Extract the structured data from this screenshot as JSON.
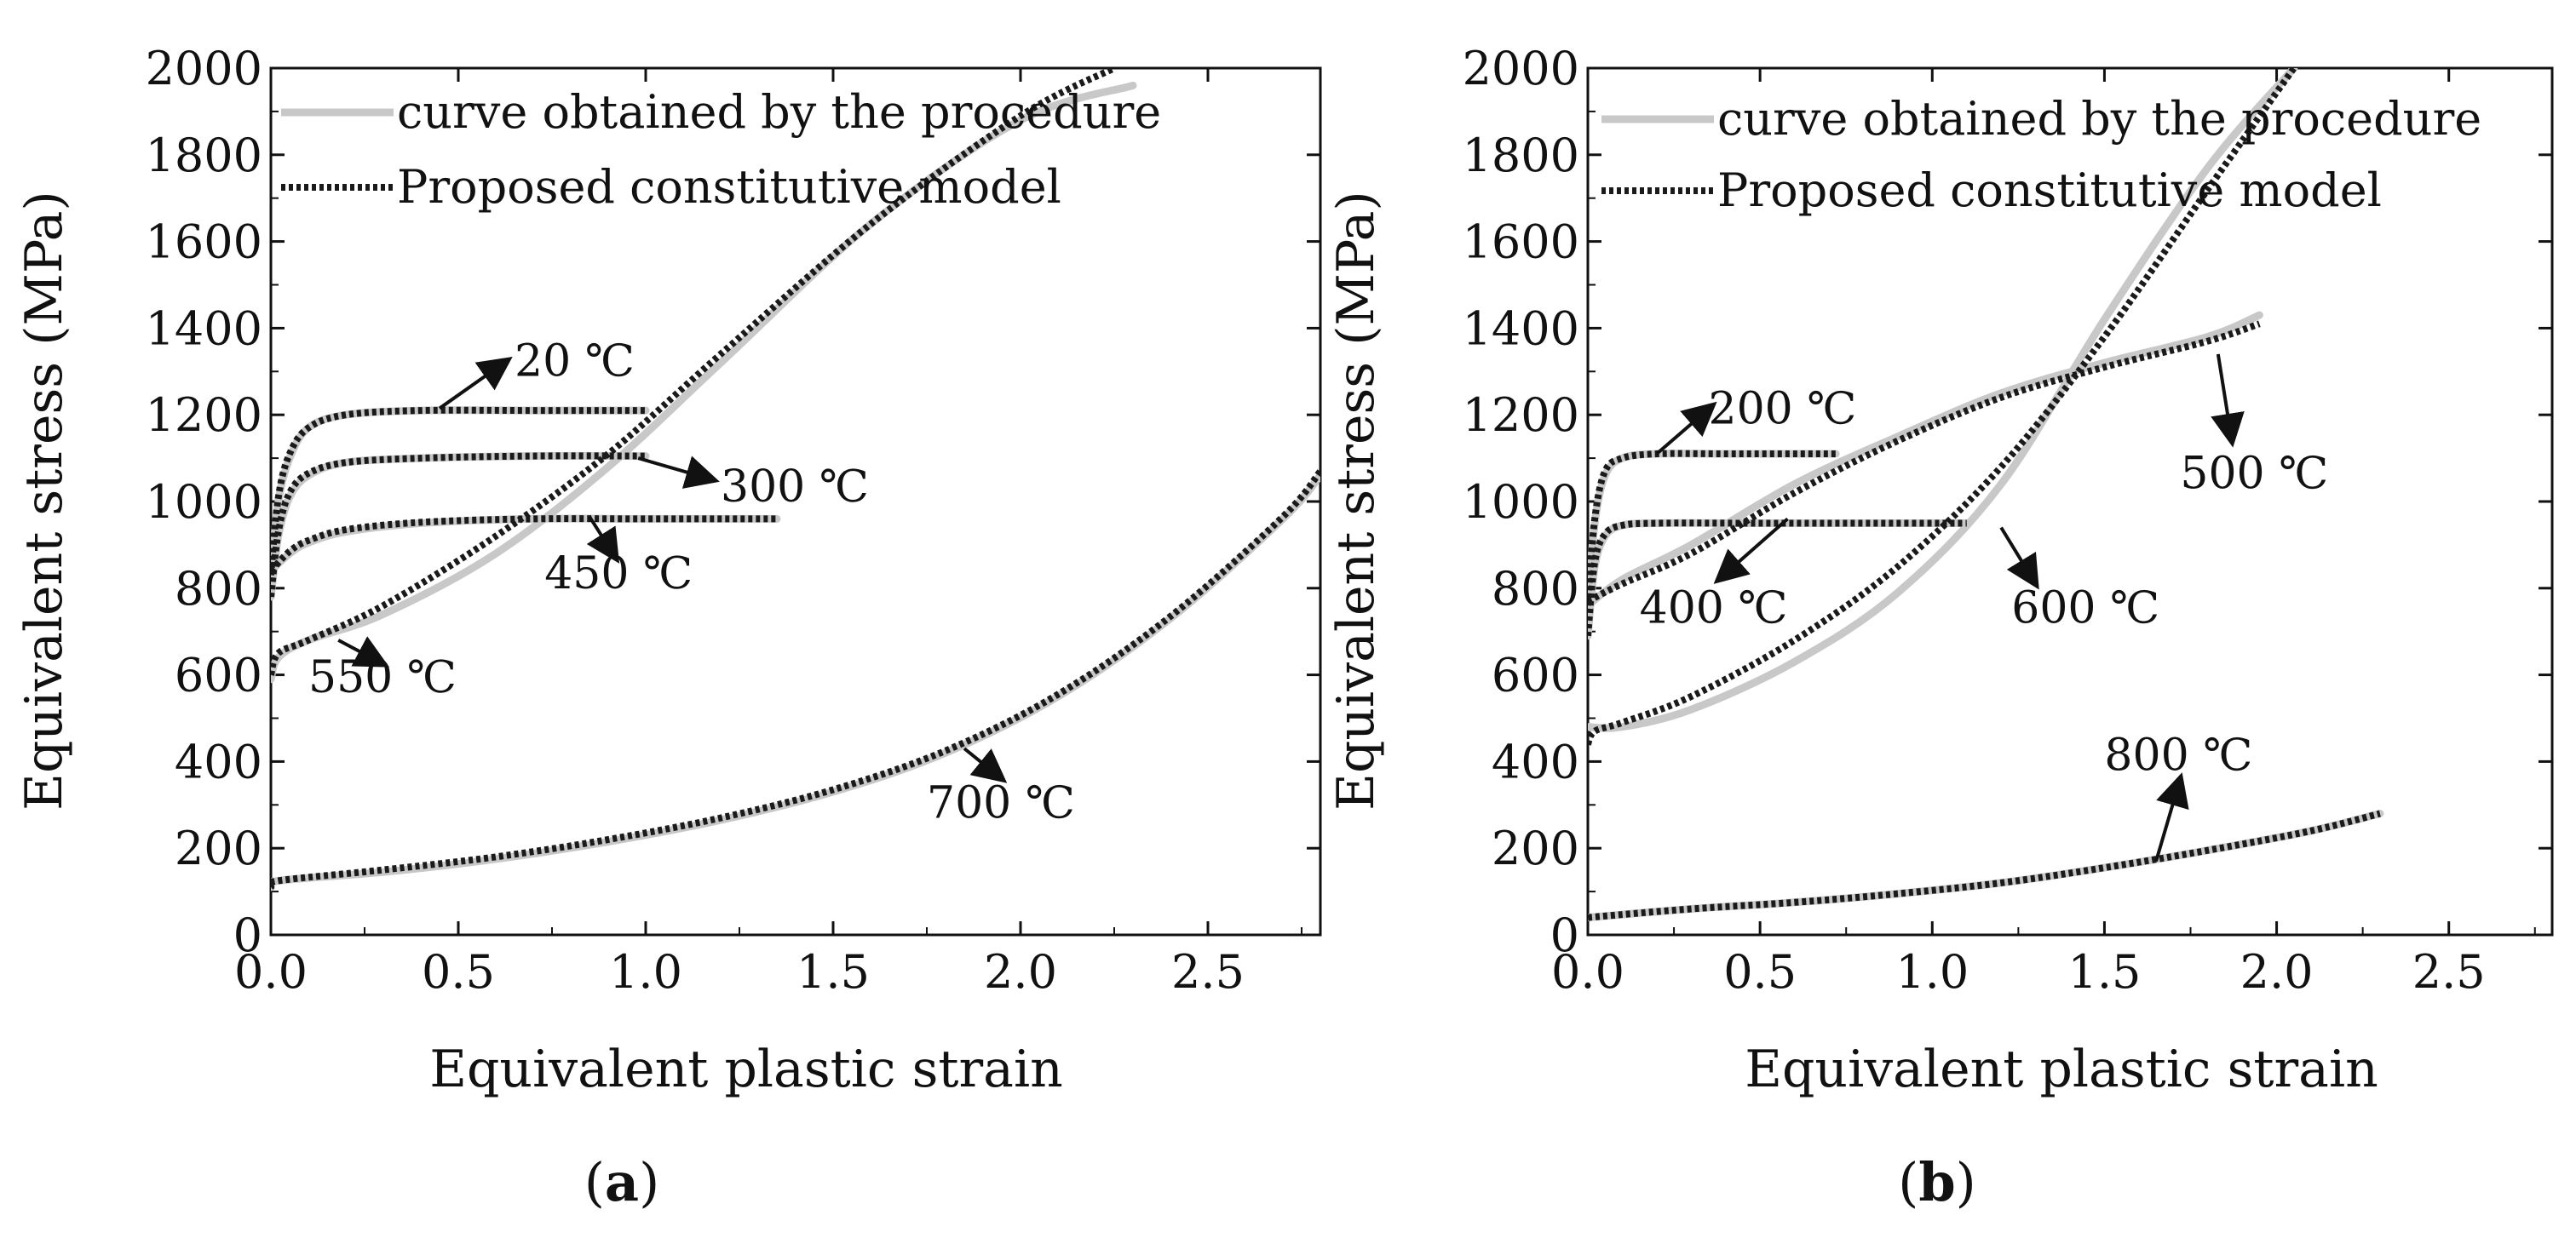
{
  "colors": {
    "procedure_line": "#c8c8c8",
    "model_line": "#1a1a1a",
    "axis": "#111111",
    "background": "#ffffff"
  },
  "chart_data": [
    {
      "id": "a",
      "type": "line",
      "caption": {
        "open": "(",
        "letter": "a",
        "close": ")"
      },
      "xlabel": "Equivalent plastic strain",
      "ylabel": "Equivalent stress (MPa)",
      "xlim": [
        0,
        2.8
      ],
      "ylim": [
        0,
        2000
      ],
      "xticks": [
        0.0,
        0.5,
        1.0,
        1.5,
        2.0,
        2.5
      ],
      "xtick_labels": [
        "0.0",
        "0.5",
        "1.0",
        "1.5",
        "2.0",
        "2.5"
      ],
      "yticks": [
        0,
        200,
        400,
        600,
        800,
        1000,
        1200,
        1400,
        1600,
        1800,
        2000
      ],
      "ytick_labels": [
        "0",
        "200",
        "400",
        "600",
        "800",
        "1000",
        "1200",
        "1400",
        "1600",
        "1800",
        "2000"
      ],
      "legend": {
        "position": "top-left",
        "entries": [
          "curve obtained by the procedure",
          "Proposed constitutive model"
        ]
      },
      "series": [
        {
          "name": "20 ℃",
          "annotation": {
            "text": "20 ℃",
            "at": [
              0.65,
              1290
            ],
            "from": [
              0.45,
              1215
            ],
            "to": [
              0.63,
              1325
            ]
          },
          "procedure": [
            [
              0.0,
              830
            ],
            [
              0.02,
              1000
            ],
            [
              0.05,
              1100
            ],
            [
              0.1,
              1170
            ],
            [
              0.2,
              1200
            ],
            [
              0.4,
              1210
            ],
            [
              0.7,
              1210
            ],
            [
              1.0,
              1210
            ]
          ],
          "model": [
            [
              0.0,
              830
            ],
            [
              0.02,
              1010
            ],
            [
              0.05,
              1110
            ],
            [
              0.1,
              1170
            ],
            [
              0.2,
              1200
            ],
            [
              0.4,
              1210
            ],
            [
              0.7,
              1210
            ],
            [
              1.0,
              1210
            ]
          ]
        },
        {
          "name": "300 ℃",
          "annotation": {
            "text": "300 ℃",
            "at": [
              1.2,
              1000
            ],
            "from": [
              0.98,
              1100
            ],
            "to": [
              1.18,
              1050
            ]
          },
          "procedure": [
            [
              0.0,
              780
            ],
            [
              0.02,
              920
            ],
            [
              0.05,
              1010
            ],
            [
              0.1,
              1060
            ],
            [
              0.2,
              1090
            ],
            [
              0.4,
              1100
            ],
            [
              0.7,
              1105
            ],
            [
              1.0,
              1105
            ]
          ],
          "model": [
            [
              0.0,
              780
            ],
            [
              0.02,
              930
            ],
            [
              0.05,
              1020
            ],
            [
              0.1,
              1065
            ],
            [
              0.2,
              1090
            ],
            [
              0.4,
              1100
            ],
            [
              0.7,
              1105
            ],
            [
              1.0,
              1105
            ]
          ]
        },
        {
          "name": "450 ℃",
          "annotation": {
            "text": "450 ℃",
            "at": [
              0.73,
              800
            ],
            "from": [
              0.85,
              965
            ],
            "to": [
              0.92,
              870
            ]
          },
          "procedure": [
            [
              0.0,
              840
            ],
            [
              0.05,
              880
            ],
            [
              0.1,
              905
            ],
            [
              0.2,
              930
            ],
            [
              0.4,
              950
            ],
            [
              0.7,
              960
            ],
            [
              1.0,
              960
            ],
            [
              1.35,
              960
            ]
          ],
          "model": [
            [
              0.0,
              840
            ],
            [
              0.05,
              885
            ],
            [
              0.1,
              910
            ],
            [
              0.2,
              935
            ],
            [
              0.4,
              952
            ],
            [
              0.7,
              960
            ],
            [
              1.0,
              960
            ],
            [
              1.35,
              960
            ]
          ]
        },
        {
          "name": "550 ℃",
          "annotation": {
            "text": "550 ℃",
            "at": [
              0.1,
              560
            ],
            "from": [
              0.18,
              680
            ],
            "to": [
              0.3,
              625
            ]
          },
          "procedure": [
            [
              0.0,
              590
            ],
            [
              0.02,
              640
            ],
            [
              0.1,
              680
            ],
            [
              0.3,
              740
            ],
            [
              0.6,
              880
            ],
            [
              0.9,
              1080
            ],
            [
              1.2,
              1320
            ],
            [
              1.6,
              1640
            ],
            [
              2.0,
              1880
            ],
            [
              2.3,
              1960
            ]
          ],
          "model": [
            [
              0.0,
              600
            ],
            [
              0.02,
              650
            ],
            [
              0.1,
              680
            ],
            [
              0.3,
              760
            ],
            [
              0.6,
              920
            ],
            [
              0.9,
              1110
            ],
            [
              1.2,
              1340
            ],
            [
              1.6,
              1640
            ],
            [
              2.0,
              1890
            ],
            [
              2.25,
              2000
            ]
          ]
        },
        {
          "name": "700 ℃",
          "annotation": {
            "text": "700 ℃",
            "at": [
              1.75,
              270
            ],
            "from": [
              1.85,
              430
            ],
            "to": [
              1.95,
              360
            ]
          },
          "procedure": [
            [
              0.0,
              110
            ],
            [
              0.02,
              125
            ],
            [
              0.3,
              145
            ],
            [
              0.6,
              175
            ],
            [
              0.9,
              215
            ],
            [
              1.2,
              265
            ],
            [
              1.5,
              330
            ],
            [
              1.8,
              420
            ],
            [
              2.1,
              550
            ],
            [
              2.4,
              730
            ],
            [
              2.7,
              960
            ],
            [
              2.8,
              1060
            ]
          ],
          "model": [
            [
              0.0,
              110
            ],
            [
              0.02,
              125
            ],
            [
              0.3,
              150
            ],
            [
              0.6,
              180
            ],
            [
              0.9,
              220
            ],
            [
              1.2,
              270
            ],
            [
              1.5,
              335
            ],
            [
              1.8,
              425
            ],
            [
              2.1,
              555
            ],
            [
              2.4,
              735
            ],
            [
              2.7,
              965
            ],
            [
              2.8,
              1070
            ]
          ]
        }
      ]
    },
    {
      "id": "b",
      "type": "line",
      "caption": {
        "open": "(",
        "letter": "b",
        "close": ")"
      },
      "xlabel": "Equivalent plastic strain",
      "ylabel": "Equivalent stress (MPa)",
      "xlim": [
        0,
        2.8
      ],
      "ylim": [
        0,
        2000
      ],
      "xticks": [
        0.0,
        0.5,
        1.0,
        1.5,
        2.0,
        2.5
      ],
      "xtick_labels": [
        "0.0",
        "0.5",
        "1.0",
        "1.5",
        "2.0",
        "2.5"
      ],
      "yticks": [
        0,
        200,
        400,
        600,
        800,
        1000,
        1200,
        1400,
        1600,
        1800,
        2000
      ],
      "ytick_labels": [
        "0",
        "200",
        "400",
        "600",
        "800",
        "1000",
        "1200",
        "1400",
        "1600",
        "1800",
        "2000"
      ],
      "legend": {
        "position": "top-left",
        "entries": [
          "curve obtained by the procedure",
          "Proposed constitutive model"
        ]
      },
      "series": [
        {
          "name": "200 ℃",
          "annotation": {
            "text": "200 ℃",
            "at": [
              0.35,
              1180
            ],
            "from": [
              0.2,
              1110
            ],
            "to": [
              0.36,
              1220
            ]
          },
          "procedure": [
            [
              0.0,
              760
            ],
            [
              0.02,
              950
            ],
            [
              0.05,
              1060
            ],
            [
              0.1,
              1100
            ],
            [
              0.2,
              1110
            ],
            [
              0.4,
              1110
            ],
            [
              0.72,
              1110
            ]
          ],
          "model": [
            [
              0.0,
              760
            ],
            [
              0.02,
              960
            ],
            [
              0.05,
              1070
            ],
            [
              0.1,
              1100
            ],
            [
              0.2,
              1110
            ],
            [
              0.4,
              1110
            ],
            [
              0.72,
              1110
            ]
          ]
        },
        {
          "name": "400 ℃",
          "annotation": {
            "text": "400 ℃",
            "at": [
              0.15,
              720
            ],
            "from": [
              0.58,
              960
            ],
            "to": [
              0.38,
              820
            ]
          },
          "procedure": [
            [
              0.0,
              690
            ],
            [
              0.02,
              850
            ],
            [
              0.05,
              920
            ],
            [
              0.1,
              945
            ],
            [
              0.2,
              950
            ],
            [
              0.5,
              950
            ],
            [
              0.8,
              950
            ],
            [
              1.1,
              950
            ]
          ],
          "model": [
            [
              0.0,
              690
            ],
            [
              0.02,
              860
            ],
            [
              0.05,
              925
            ],
            [
              0.1,
              945
            ],
            [
              0.2,
              950
            ],
            [
              0.5,
              950
            ],
            [
              0.8,
              950
            ],
            [
              1.1,
              950
            ]
          ]
        },
        {
          "name": "500 ℃",
          "annotation": {
            "text": "500 ℃",
            "at": [
              1.72,
              1030
            ],
            "from": [
              1.83,
              1340
            ],
            "to": [
              1.87,
              1140
            ]
          },
          "procedure": [
            [
              0.0,
              760
            ],
            [
              0.1,
              820
            ],
            [
              0.3,
              900
            ],
            [
              0.6,
              1040
            ],
            [
              0.9,
              1150
            ],
            [
              1.2,
              1250
            ],
            [
              1.5,
              1320
            ],
            [
              1.8,
              1380
            ],
            [
              1.95,
              1430
            ]
          ],
          "model": [
            [
              0.0,
              770
            ],
            [
              0.1,
              810
            ],
            [
              0.3,
              880
            ],
            [
              0.6,
              1020
            ],
            [
              0.9,
              1140
            ],
            [
              1.2,
              1240
            ],
            [
              1.5,
              1310
            ],
            [
              1.8,
              1370
            ],
            [
              1.95,
              1410
            ]
          ]
        },
        {
          "name": "600 ℃",
          "annotation": {
            "text": "600 ℃",
            "at": [
              1.23,
              720
            ],
            "from": [
              1.2,
              940
            ],
            "to": [
              1.3,
              810
            ]
          },
          "procedure": [
            [
              0.0,
              480
            ],
            [
              0.1,
              480
            ],
            [
              0.3,
              520
            ],
            [
              0.6,
              630
            ],
            [
              0.9,
              790
            ],
            [
              1.2,
              1040
            ],
            [
              1.5,
              1420
            ],
            [
              1.8,
              1770
            ],
            [
              2.05,
              2000
            ]
          ],
          "model": [
            [
              0.0,
              440
            ],
            [
              0.02,
              470
            ],
            [
              0.1,
              490
            ],
            [
              0.3,
              550
            ],
            [
              0.6,
              680
            ],
            [
              0.9,
              850
            ],
            [
              1.2,
              1080
            ],
            [
              1.5,
              1380
            ],
            [
              1.8,
              1720
            ],
            [
              2.05,
              2000
            ]
          ]
        },
        {
          "name": "800 ℃",
          "annotation": {
            "text": "800 ℃",
            "at": [
              1.5,
              380
            ],
            "from": [
              1.65,
              170
            ],
            "to": [
              1.72,
              360
            ]
          },
          "procedure": [
            [
              0.0,
              40
            ],
            [
              0.3,
              60
            ],
            [
              0.6,
              75
            ],
            [
              0.9,
              95
            ],
            [
              1.2,
              120
            ],
            [
              1.5,
              155
            ],
            [
              1.8,
              195
            ],
            [
              2.1,
              240
            ],
            [
              2.3,
              280
            ]
          ],
          "model": [
            [
              0.0,
              40
            ],
            [
              0.3,
              60
            ],
            [
              0.6,
              75
            ],
            [
              0.9,
              95
            ],
            [
              1.2,
              120
            ],
            [
              1.5,
              155
            ],
            [
              1.8,
              195
            ],
            [
              2.1,
              240
            ],
            [
              2.3,
              280
            ]
          ]
        }
      ]
    }
  ]
}
